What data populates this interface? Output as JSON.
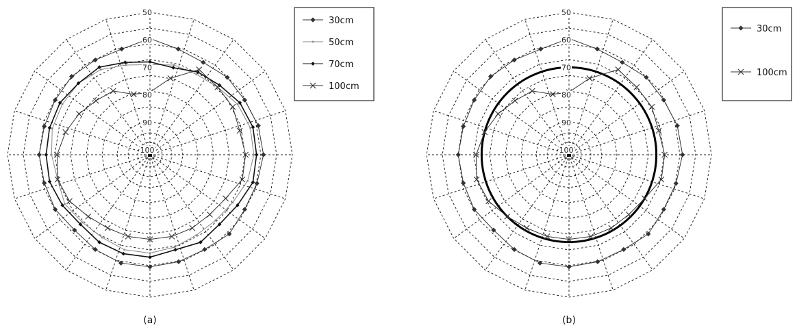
{
  "chart_data": [
    {
      "type": "polar-line",
      "panel_label": "(a)",
      "r_axis": {
        "ticks": [
          50,
          60,
          70,
          80,
          90,
          100
        ],
        "inverted": true,
        "min": 50,
        "max": 100
      },
      "angles_deg": [
        0,
        15,
        30,
        45,
        60,
        75,
        90,
        105,
        120,
        135,
        150,
        165,
        180,
        195,
        210,
        225,
        240,
        255,
        270,
        285,
        300,
        315,
        330,
        345
      ],
      "legend": {
        "position": "right",
        "entries": [
          "30cm",
          "50cm",
          "70cm",
          "100cm"
        ]
      },
      "series": [
        {
          "name": "30cm",
          "marker": "diamond",
          "color": "#333333",
          "values": [
            59.5,
            62,
            63,
            62,
            62,
            61,
            60.5,
            61.5,
            62,
            61,
            62,
            61.5,
            61,
            61,
            62,
            63,
            62,
            62,
            61.5,
            62,
            62,
            61.5,
            62,
            62
          ]
        },
        {
          "name": "50cm",
          "marker": "dot-small",
          "color": "#888888",
          "values": [
            69,
            68,
            68,
            67,
            65,
            64,
            64,
            65,
            67,
            68,
            68,
            67,
            66,
            66,
            67,
            67,
            66,
            67,
            66,
            65,
            65,
            65,
            66,
            68
          ]
        },
        {
          "name": "70cm",
          "marker": "diamond-small",
          "color": "#111111",
          "values": [
            68,
            69,
            67,
            66,
            64,
            63,
            63,
            63,
            65,
            66,
            65,
            66,
            64.5,
            64.5,
            65,
            66,
            65,
            64,
            64,
            64,
            64,
            65,
            65,
            67
          ]
        },
        {
          "name": "100cm",
          "marker": "x",
          "color": "#333333",
          "values": [
            79,
            73,
            66,
            67,
            67,
            68,
            67,
            67,
            70,
            71,
            71,
            71,
            71,
            71,
            71,
            70,
            68,
            67,
            68,
            70,
            72,
            74,
            75,
            79
          ]
        }
      ]
    },
    {
      "type": "polar-line",
      "panel_label": "(b)",
      "r_axis": {
        "ticks": [
          50,
          60,
          70,
          80,
          90,
          100
        ],
        "inverted": true,
        "min": 50,
        "max": 100
      },
      "angles_deg": [
        0,
        15,
        30,
        45,
        60,
        75,
        90,
        105,
        120,
        135,
        150,
        165,
        180,
        195,
        210,
        225,
        240,
        255,
        270,
        285,
        300,
        315,
        330,
        345
      ],
      "legend": {
        "position": "right",
        "entries": [
          "30cm",
          "100cm"
        ]
      },
      "series": [
        {
          "name": "30cm",
          "marker": "diamond",
          "color": "#333333",
          "values": [
            59.5,
            62,
            63,
            62,
            62,
            61,
            60.5,
            61.5,
            62,
            61,
            62,
            61.5,
            61,
            61,
            62,
            63,
            62,
            62,
            61.5,
            62,
            62,
            61.5,
            62,
            62
          ]
        },
        {
          "name": "100cm",
          "marker": "x",
          "color": "#333333",
          "values": [
            79,
            73,
            66,
            67,
            67,
            68,
            67,
            67,
            70,
            71,
            71,
            71,
            71,
            71,
            71,
            70,
            68,
            67,
            68,
            70,
            72,
            74,
            75,
            79
          ]
        }
      ],
      "reference_circle": {
        "value": 70,
        "color": "#000000"
      }
    }
  ]
}
